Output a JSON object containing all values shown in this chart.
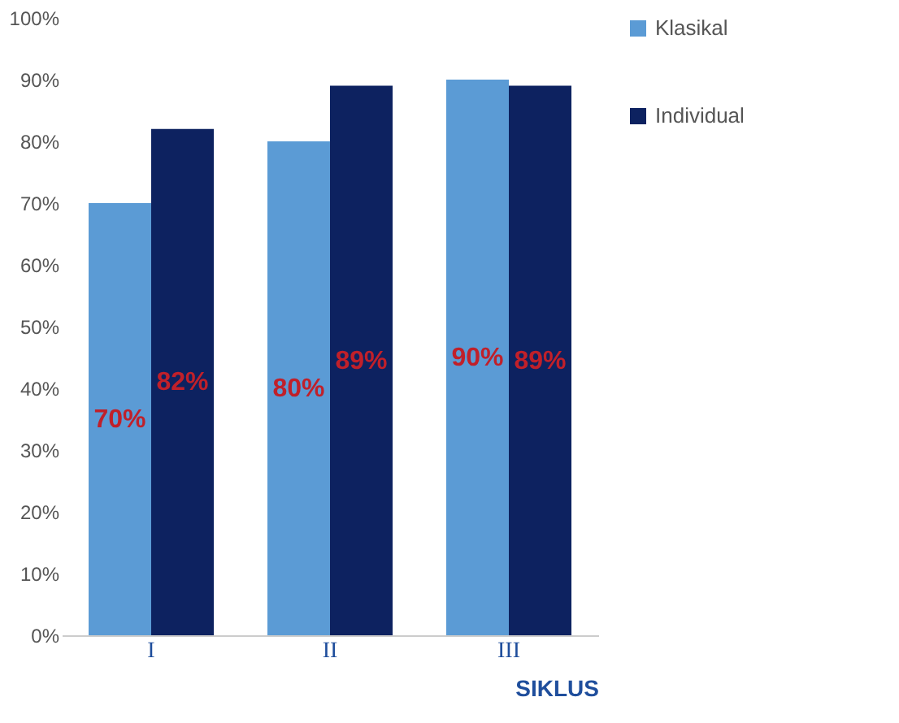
{
  "chart_data": {
    "type": "bar",
    "categories": [
      "I",
      "II",
      "III"
    ],
    "xlabel": "SIKLUS",
    "series": [
      {
        "name": "Klasikal",
        "color": "#5b9bd5",
        "values": [
          70,
          80,
          90
        ],
        "value_labels": [
          "70%",
          "80%",
          "90%"
        ]
      },
      {
        "name": "Individual",
        "color": "#0d2260",
        "values": [
          82,
          89,
          89
        ],
        "value_labels": [
          "82%",
          "89%",
          "89%"
        ]
      }
    ],
    "ylim": [
      0,
      100
    ],
    "yticks": [
      {
        "value": 0,
        "label": "0%"
      },
      {
        "value": 10,
        "label": "10%"
      },
      {
        "value": 20,
        "label": "20%"
      },
      {
        "value": 30,
        "label": "30%"
      },
      {
        "value": 40,
        "label": "40%"
      },
      {
        "value": 50,
        "label": "50%"
      },
      {
        "value": 60,
        "label": "60%"
      },
      {
        "value": 70,
        "label": "70%"
      },
      {
        "value": 80,
        "label": "80%"
      },
      {
        "value": 90,
        "label": "90%"
      },
      {
        "value": 100,
        "label": "100%"
      }
    ],
    "data_labels": false,
    "grid": false,
    "legend": "right"
  }
}
